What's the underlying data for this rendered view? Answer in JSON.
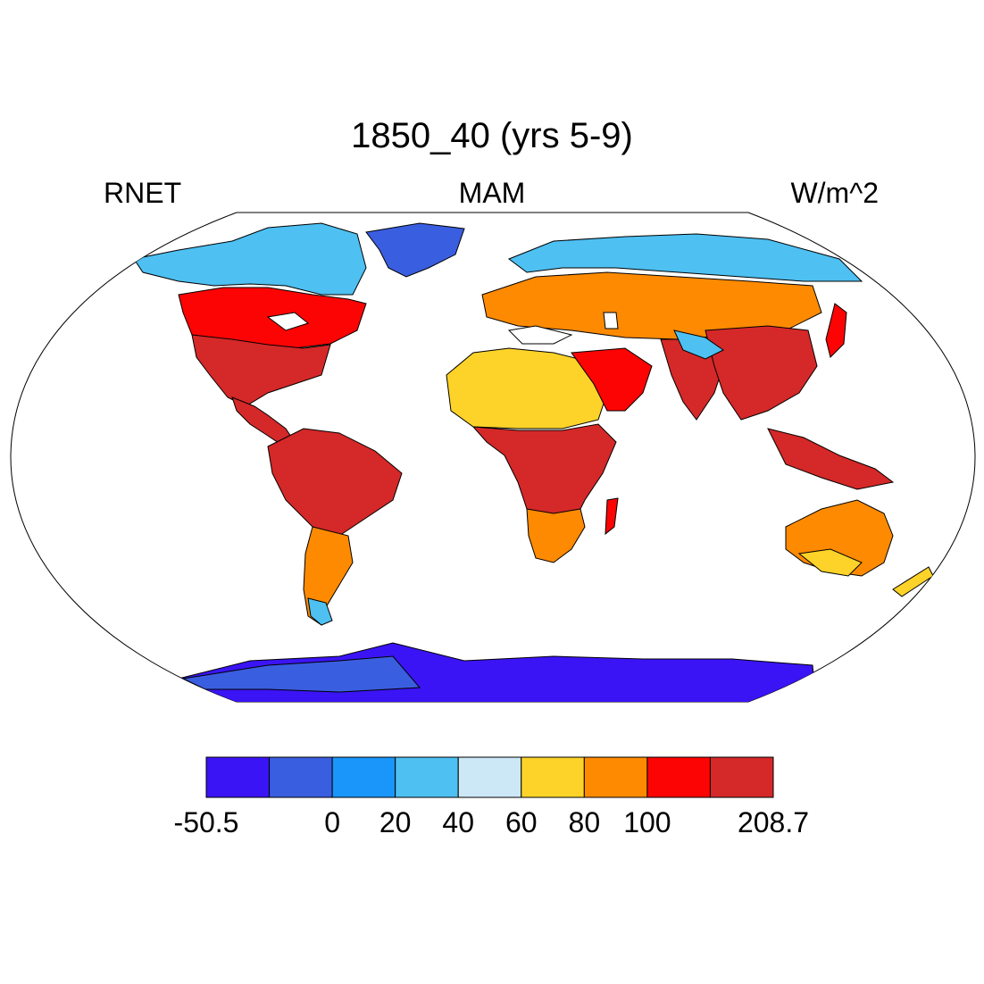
{
  "title": "1850_40 (yrs 5-9)",
  "left_string": "RNET",
  "center_string": "MAM",
  "right_string": "W/m^2",
  "colorbar": {
    "colors": [
      "#3b14f5",
      "#3a5ee0",
      "#1a96fb",
      "#4ec0f2",
      "#cce8f6",
      "#fdd329",
      "#fd8a00",
      "#fc0404",
      "#d52828"
    ],
    "boundaries": [
      -50.5,
      0,
      20,
      40,
      60,
      80,
      100,
      208.7
    ],
    "tick_labels": [
      "-50.5",
      "0",
      "20",
      "40",
      "60",
      "80",
      "100",
      "208.7"
    ]
  },
  "map": {
    "projection": "Robinson",
    "land_colors": {
      "antarctica": "#3b14f5",
      "greenland": "#3a5ee0",
      "arctic": "#4ec0f2",
      "subarctic": "#cce8f6",
      "temperate": "#fd8a00",
      "warm": "#fc0404",
      "tropical": "#d52828",
      "dry": "#fdd329"
    }
  }
}
